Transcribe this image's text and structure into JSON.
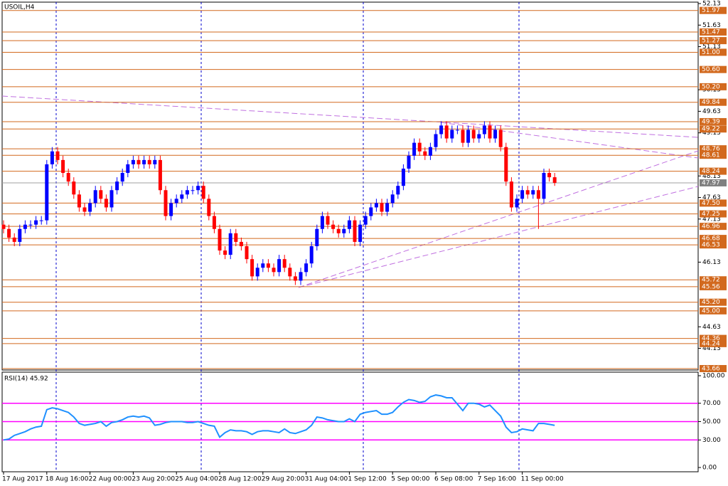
{
  "chart_data": [
    {
      "type": "candlestick",
      "title": "USOIL,H4",
      "categories": [
        "17 Aug 2017",
        null,
        null,
        null,
        null,
        null,
        null,
        null,
        "18 Aug 16:00",
        null,
        null,
        null,
        null,
        null,
        null,
        null,
        "22 Aug 00:00",
        null,
        null,
        null,
        null,
        null,
        null,
        null,
        "23 Aug 20:00",
        null,
        null,
        null,
        null,
        null,
        null,
        null,
        "25 Aug 04:00",
        null,
        null,
        null,
        null,
        null,
        null,
        null,
        "28 Aug 12:00",
        null,
        null,
        null,
        null,
        null,
        null,
        null,
        "29 Aug 20:00",
        null,
        null,
        null,
        null,
        null,
        null,
        null,
        "31 Aug 04:00",
        null,
        null,
        null,
        null,
        null,
        null,
        null,
        "1 Sep 12:00",
        null,
        null,
        null,
        null,
        null,
        null,
        null,
        "5 Sep 00:00",
        null,
        null,
        null,
        null,
        null,
        null,
        null,
        "6 Sep 08:00",
        null,
        null,
        null,
        null,
        null,
        null,
        null,
        "7 Sep 16:00",
        null,
        null,
        null,
        null,
        null,
        null,
        null,
        "11 Sep 00:00",
        null,
        null,
        null,
        null,
        null,
        null
      ],
      "open": [
        47.0,
        46.9,
        46.7,
        46.6,
        46.9,
        47.0,
        47.0,
        47.1,
        47.1,
        48.4,
        48.7,
        48.5,
        48.2,
        48.0,
        47.7,
        47.4,
        47.3,
        47.5,
        47.8,
        47.6,
        47.4,
        47.8,
        48.0,
        48.2,
        48.4,
        48.5,
        48.4,
        48.5,
        48.4,
        48.5,
        47.8,
        47.2,
        47.5,
        47.6,
        47.7,
        47.8,
        47.8,
        47.9,
        47.6,
        47.2,
        46.9,
        46.4,
        46.3,
        46.8,
        46.6,
        46.5,
        46.2,
        45.8,
        46.0,
        46.1,
        46.0,
        45.9,
        46.2,
        46.0,
        45.8,
        45.7,
        45.9,
        46.1,
        46.5,
        46.9,
        47.2,
        47.0,
        46.9,
        46.8,
        46.9,
        47.1,
        46.6,
        47.0,
        47.2,
        47.4,
        47.5,
        47.3,
        47.5,
        47.7,
        47.9,
        48.3,
        48.6,
        48.9,
        48.7,
        48.6,
        48.8,
        49.1,
        49.3,
        49.0,
        49.2,
        49.2,
        48.9,
        49.2,
        49.0,
        49.1,
        49.3,
        49.0,
        49.2,
        48.8,
        48.0,
        47.4,
        47.6,
        47.8,
        47.7,
        47.8,
        47.6,
        48.2,
        48.1
      ],
      "high": [
        47.1,
        47.0,
        46.8,
        47.0,
        47.1,
        47.1,
        47.2,
        47.2,
        48.5,
        48.8,
        48.8,
        48.6,
        48.3,
        48.1,
        47.8,
        47.5,
        47.6,
        47.9,
        47.9,
        47.7,
        47.9,
        48.1,
        48.3,
        48.5,
        48.6,
        48.6,
        48.6,
        48.6,
        48.6,
        48.6,
        47.9,
        47.6,
        47.7,
        47.8,
        47.9,
        47.9,
        48.0,
        48.0,
        47.7,
        47.3,
        47.0,
        46.5,
        46.9,
        46.9,
        46.7,
        46.6,
        46.3,
        46.1,
        46.2,
        46.2,
        46.1,
        46.3,
        46.3,
        46.1,
        45.9,
        46.0,
        46.2,
        46.6,
        47.0,
        47.3,
        47.3,
        47.1,
        47.0,
        47.0,
        47.2,
        47.2,
        47.1,
        47.3,
        47.5,
        47.6,
        47.6,
        47.6,
        47.8,
        48.0,
        48.4,
        48.7,
        49.0,
        49.0,
        48.8,
        48.9,
        49.2,
        49.4,
        49.4,
        49.3,
        49.3,
        49.3,
        49.3,
        49.3,
        49.2,
        49.4,
        49.4,
        49.3,
        49.3,
        48.9,
        48.1,
        47.7,
        47.9,
        47.9,
        47.9,
        47.9,
        48.3,
        48.3,
        48.2
      ],
      "low": [
        46.8,
        46.6,
        46.5,
        46.5,
        46.8,
        46.9,
        46.9,
        47.0,
        47.0,
        48.3,
        48.4,
        48.1,
        47.9,
        47.6,
        47.3,
        47.2,
        47.2,
        47.4,
        47.5,
        47.3,
        47.3,
        47.7,
        47.9,
        48.1,
        48.3,
        48.3,
        48.3,
        48.3,
        48.3,
        47.7,
        47.1,
        47.1,
        47.4,
        47.5,
        47.6,
        47.7,
        47.7,
        47.5,
        47.1,
        46.8,
        46.3,
        46.2,
        46.2,
        46.5,
        46.4,
        46.1,
        45.7,
        45.7,
        45.9,
        45.9,
        45.8,
        45.8,
        45.9,
        45.7,
        45.6,
        45.6,
        45.8,
        46.0,
        46.4,
        46.8,
        46.9,
        46.8,
        46.7,
        46.7,
        46.8,
        46.5,
        46.5,
        46.9,
        47.1,
        47.3,
        47.2,
        47.2,
        47.4,
        47.6,
        47.8,
        48.2,
        48.5,
        48.6,
        48.5,
        48.5,
        48.7,
        49.0,
        48.9,
        48.9,
        49.1,
        48.8,
        48.8,
        48.9,
        48.9,
        49.0,
        48.9,
        48.9,
        48.7,
        47.9,
        47.3,
        47.3,
        47.5,
        47.6,
        47.6,
        46.9,
        47.5,
        48.0,
        47.9
      ],
      "close": [
        46.9,
        46.7,
        46.6,
        46.9,
        47.0,
        47.0,
        47.1,
        47.1,
        48.4,
        48.7,
        48.5,
        48.2,
        48.0,
        47.7,
        47.4,
        47.3,
        47.5,
        47.8,
        47.6,
        47.4,
        47.8,
        48.0,
        48.2,
        48.4,
        48.5,
        48.4,
        48.5,
        48.4,
        48.5,
        47.8,
        47.2,
        47.5,
        47.6,
        47.7,
        47.8,
        47.8,
        47.9,
        47.6,
        47.2,
        46.9,
        46.4,
        46.3,
        46.8,
        46.6,
        46.5,
        46.2,
        45.8,
        46.0,
        46.1,
        46.0,
        45.9,
        46.2,
        46.0,
        45.8,
        45.7,
        45.9,
        46.1,
        46.5,
        46.9,
        47.2,
        47.0,
        46.9,
        46.8,
        46.9,
        47.1,
        46.6,
        47.0,
        47.2,
        47.4,
        47.5,
        47.3,
        47.5,
        47.7,
        47.9,
        48.3,
        48.6,
        48.9,
        48.7,
        48.6,
        48.8,
        49.1,
        49.3,
        49.0,
        49.2,
        49.2,
        48.9,
        49.2,
        49.0,
        49.1,
        49.3,
        49.0,
        49.2,
        48.8,
        48.0,
        47.4,
        47.6,
        47.8,
        47.7,
        47.8,
        47.6,
        48.2,
        48.1,
        47.97
      ],
      "up_color": "#0000ff",
      "down_color": "#ff0000",
      "ylim": [
        43.66,
        52.13
      ],
      "yticks": [
        52.13,
        51.63,
        51.13,
        50.13,
        49.63,
        49.13,
        48.13,
        47.63,
        47.13,
        46.13,
        44.63,
        44.13
      ],
      "levels": [
        51.97,
        51.47,
        51.27,
        {
          "value": 51,
          "label": "51.00"
        },
        {
          "value": 50.6,
          "label": "50.60"
        },
        {
          "value": 50.2,
          "label": "50.20"
        },
        49.84,
        49.39,
        49.22,
        48.76,
        48.61,
        48.24,
        {
          "value": 47.5,
          "label": "47.50"
        },
        47.25,
        46.96,
        46.68,
        46.53,
        45.72,
        45.56,
        {
          "value": 45.2,
          "label": "45.20"
        },
        {
          "value": 45,
          "label": "45.00"
        },
        44.36,
        44.24,
        43.66
      ],
      "level_color": "#d2691e",
      "price_line_color": "#a0a0a0"
    },
    {
      "type": "line",
      "title": "RSI(14) 45.92",
      "values": [
        30,
        31,
        35,
        37,
        39,
        42,
        44,
        45,
        63,
        65,
        64,
        62,
        60,
        55,
        48,
        46,
        47,
        48,
        50,
        45,
        49,
        50,
        52,
        55,
        56,
        55,
        56,
        54,
        46,
        47,
        49,
        50,
        50,
        50,
        49,
        49,
        50,
        48,
        46,
        45,
        33,
        38,
        41,
        40,
        40,
        39,
        36,
        39,
        40,
        40,
        39,
        38,
        42,
        38,
        37,
        39,
        41,
        46,
        55,
        54,
        52,
        51,
        50,
        50,
        53,
        50,
        58,
        60,
        61,
        62,
        58,
        58,
        60,
        66,
        71,
        74,
        73,
        71,
        72,
        77,
        79,
        78,
        76,
        76,
        69,
        62,
        70,
        70,
        69,
        66,
        68,
        62,
        56,
        44,
        38,
        39,
        42,
        41,
        40,
        48,
        48,
        47,
        45.92
      ],
      "color": "#1e90ff",
      "level_color": "#ff00ff",
      "ylim": [
        0,
        100
      ],
      "yticks": [
        {
          "value": 100,
          "label": "100.00"
        },
        {
          "value": 70,
          "label": "70.00"
        },
        {
          "value": 50,
          "label": "50.00"
        },
        {
          "value": 30,
          "label": "30.00"
        },
        {
          "value": 0,
          "label": "0.00"
        }
      ]
    }
  ]
}
